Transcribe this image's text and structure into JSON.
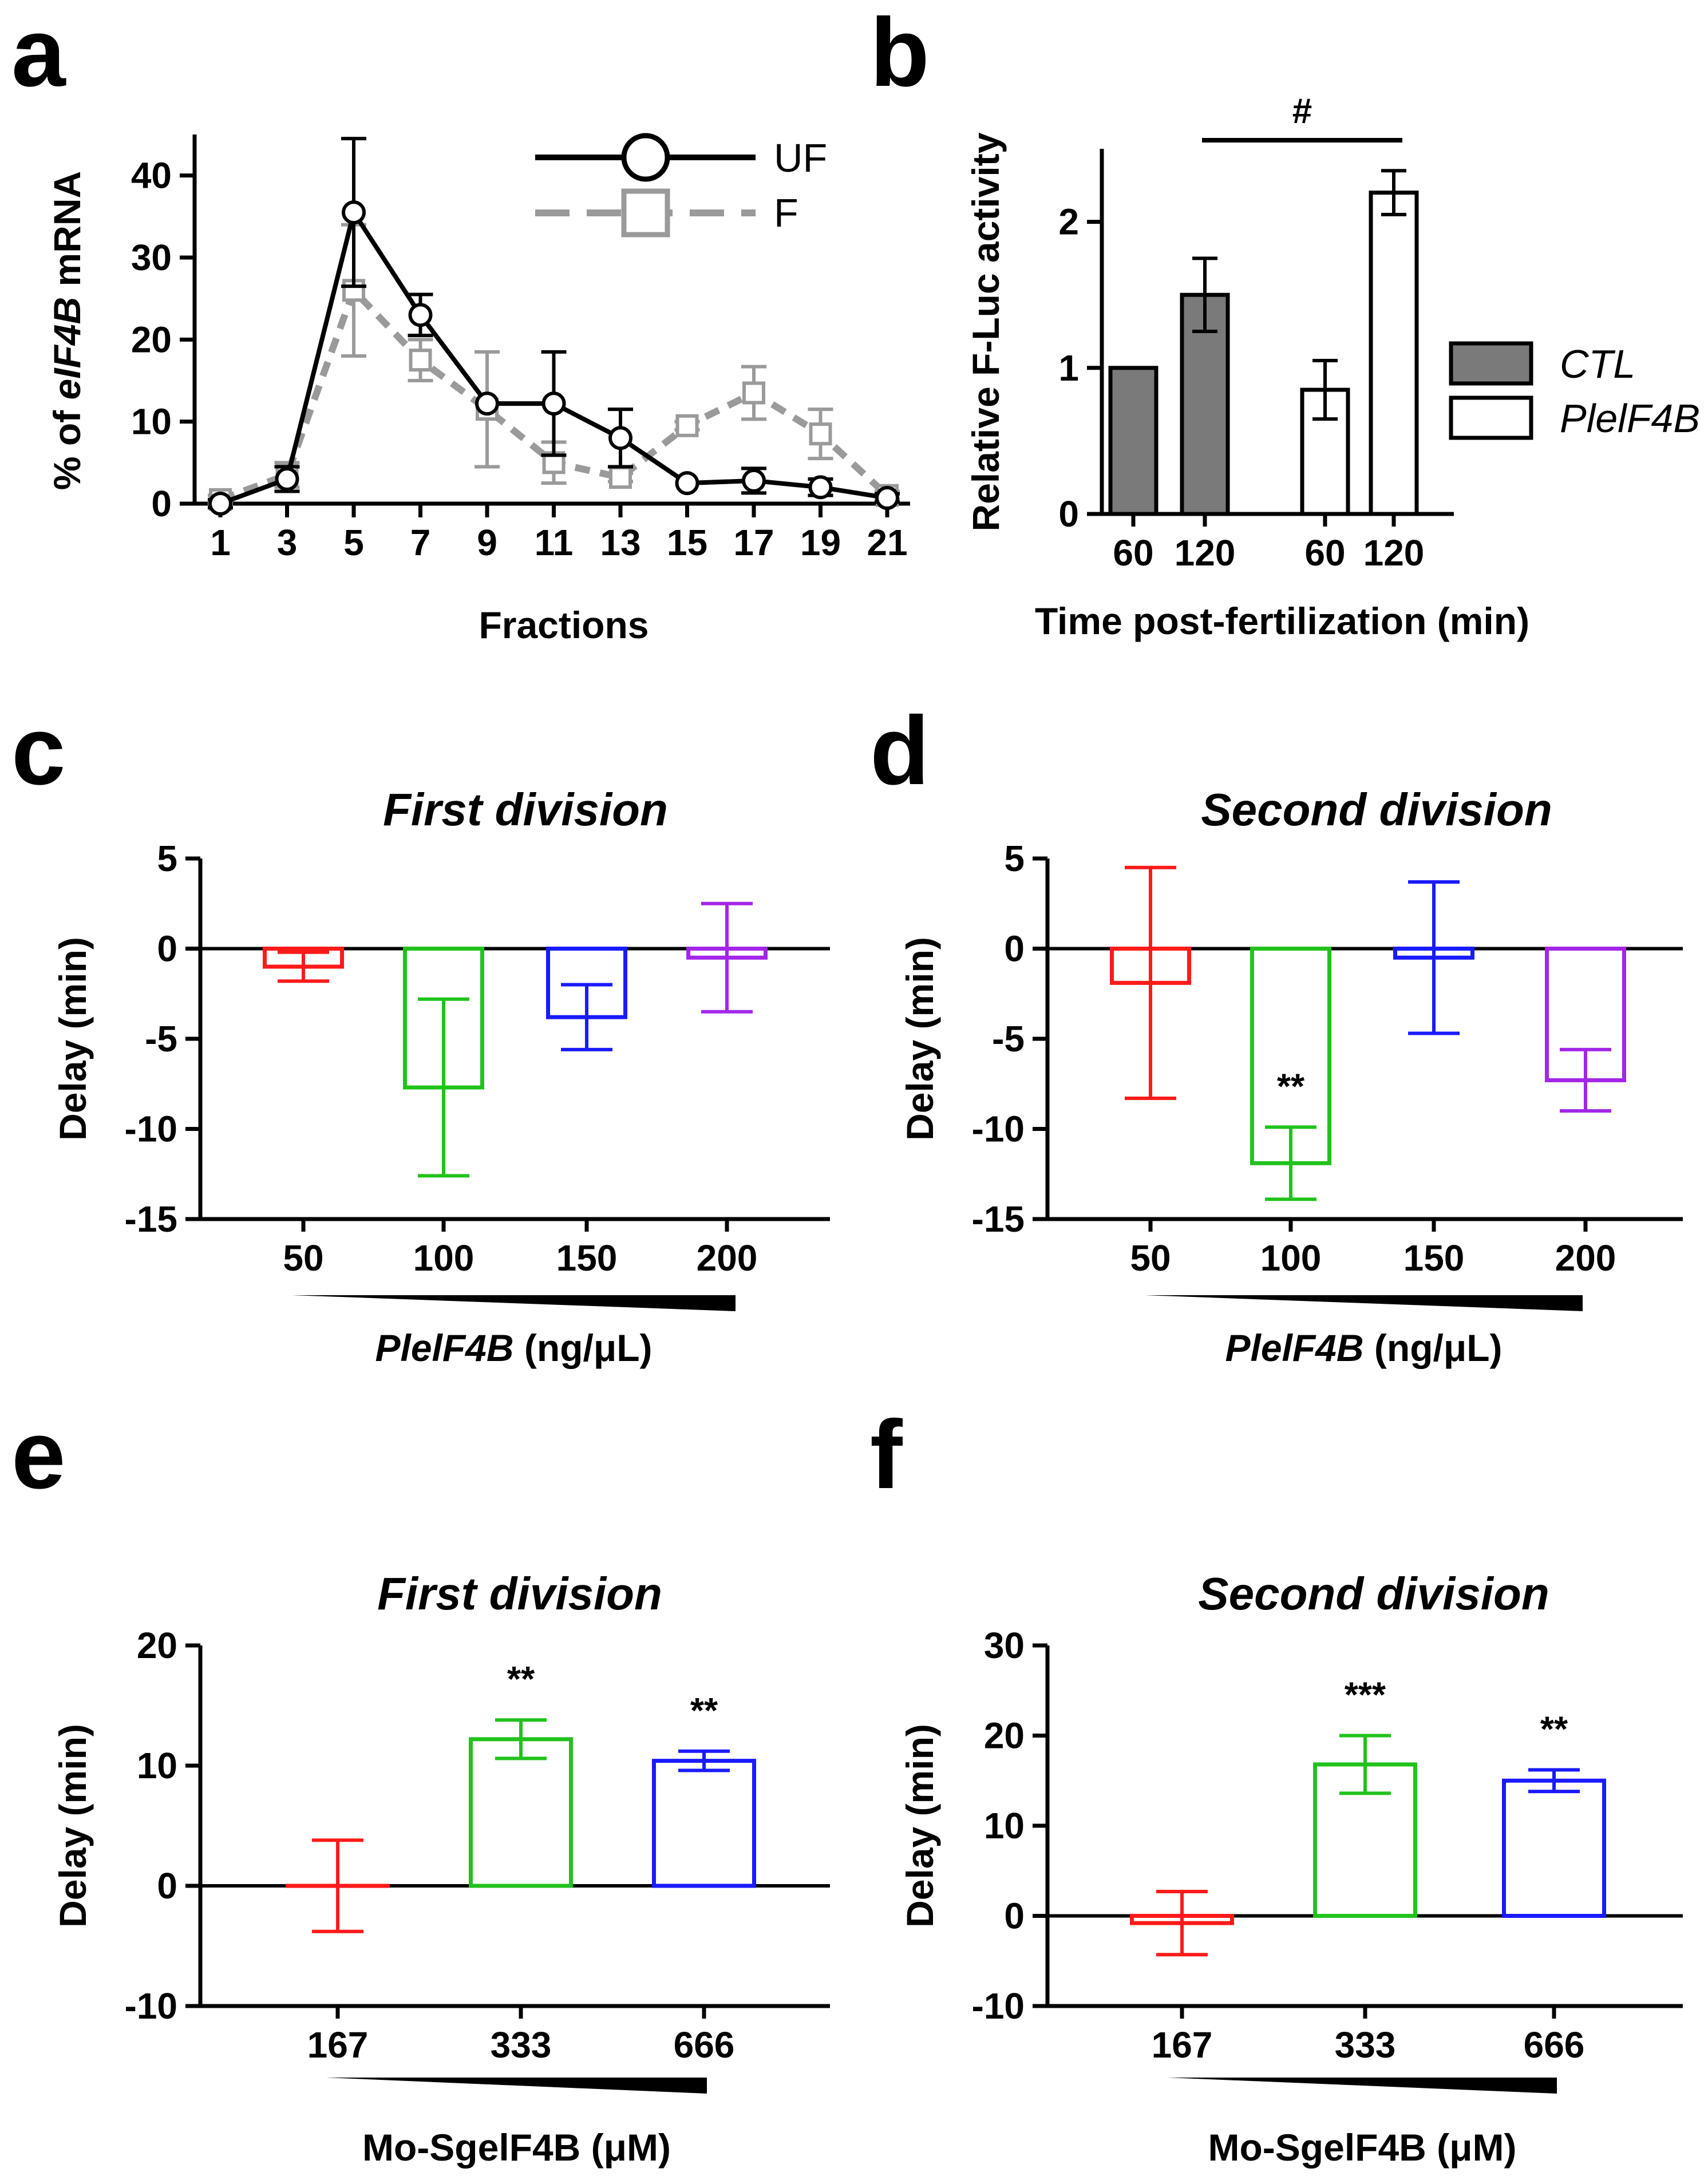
{
  "colors": {
    "black": "#000000",
    "gray": "#9a9a9a",
    "dark_gray": "#7a7a7a",
    "red": "#ff1a1a",
    "green": "#21c21c",
    "blue": "#1a1aff",
    "purple": "#a326e8"
  },
  "chart_data": [
    {
      "panel": "a",
      "type": "line",
      "title": "",
      "xlabel": "Fractions",
      "ylabel_prefix": "% of ",
      "ylabel_italic": "eIF4B",
      "ylabel_suffix": " mRNA",
      "x": [
        1,
        3,
        5,
        7,
        9,
        11,
        13,
        15,
        17,
        19,
        21
      ],
      "x_ticks": [
        "1",
        "3",
        "5",
        "7",
        "9",
        "11",
        "13",
        "15",
        "17",
        "19",
        "21"
      ],
      "y_ticks": [
        "0",
        "10",
        "20",
        "30",
        "40"
      ],
      "ylim": [
        0,
        45
      ],
      "legend_position": "top-right",
      "series": [
        {
          "name": "UF",
          "style": "solid",
          "marker": "circle",
          "values": [
            0,
            3,
            35.5,
            23,
            12.2,
            12.2,
            8,
            2.5,
            2.8,
            2,
            0.7
          ],
          "errors": [
            0.5,
            1.5,
            9,
            2.5,
            0,
            6.3,
            3.5,
            0,
            1.5,
            1,
            0.5
          ]
        },
        {
          "name": "F",
          "style": "dashed",
          "marker": "square",
          "values": [
            0.5,
            3.5,
            26,
            17.5,
            11.5,
            5,
            3.2,
            9.5,
            13.5,
            8.5,
            1
          ],
          "errors": [
            0.5,
            1.5,
            8,
            2.5,
            7,
            2.5,
            0.5,
            0.5,
            3.2,
            3,
            0.5
          ]
        }
      ]
    },
    {
      "panel": "b",
      "type": "bar",
      "title": "",
      "xlabel": "Time post-fertilization (min)",
      "ylabel": "Relative F-Luc activity",
      "categories": [
        "60",
        "120",
        "60",
        "120"
      ],
      "groups": [
        "CTL",
        "CTL",
        "PlelF4B",
        "PlelF4B"
      ],
      "values": [
        1.0,
        1.5,
        0.85,
        2.2
      ],
      "errors": [
        0,
        0.25,
        0.2,
        0.15
      ],
      "y_ticks": [
        "0",
        "1",
        "2"
      ],
      "ylim": [
        0,
        2.5
      ],
      "significance": "#",
      "legend": [
        "CTL",
        "PlelF4B"
      ],
      "legend_position": "right"
    },
    {
      "panel": "c",
      "type": "bar",
      "title": "First division",
      "ylabel": "Delay (min)",
      "xlabel_italic": "PlelF4B",
      "xlabel_suffix": "(ng/μL)",
      "categories": [
        "50",
        "100",
        "150",
        "200"
      ],
      "values": [
        -1,
        -7.7,
        -3.8,
        -0.5
      ],
      "errors": [
        0.8,
        4.9,
        1.8,
        3
      ],
      "colors": [
        "#ff1a1a",
        "#21c21c",
        "#1a1aff",
        "#a326e8"
      ],
      "significance": [
        "",
        "",
        "",
        ""
      ],
      "y_ticks": [
        "5",
        "0",
        "-5",
        "-10",
        "-15"
      ],
      "ylim": [
        -15,
        5
      ]
    },
    {
      "panel": "d",
      "type": "bar",
      "title": "Second division",
      "ylabel": "Delay (min)",
      "xlabel_italic": "PlelF4B",
      "xlabel_suffix": "(ng/μL)",
      "categories": [
        "50",
        "100",
        "150",
        "200"
      ],
      "values": [
        -1.9,
        -11.9,
        -0.5,
        -7.3
      ],
      "errors": [
        6.4,
        2,
        4.2,
        1.7
      ],
      "colors": [
        "#ff1a1a",
        "#21c21c",
        "#1a1aff",
        "#a326e8"
      ],
      "significance": [
        "",
        "**",
        "",
        ""
      ],
      "y_ticks": [
        "5",
        "0",
        "-5",
        "-10",
        "-15"
      ],
      "ylim": [
        -15,
        5
      ]
    },
    {
      "panel": "e",
      "type": "bar",
      "title": "First division",
      "ylabel": "Delay (min)",
      "xlabel": "Mo-SgelF4B (μM)",
      "categories": [
        "167",
        "333",
        "666"
      ],
      "values": [
        0,
        12.2,
        10.4
      ],
      "errors": [
        3.8,
        1.6,
        0.8
      ],
      "colors": [
        "#ff1a1a",
        "#21c21c",
        "#1a1aff"
      ],
      "significance": [
        "",
        "**",
        "**"
      ],
      "y_ticks": [
        "20",
        "10",
        "0",
        "-10"
      ],
      "ylim": [
        -10,
        20
      ]
    },
    {
      "panel": "f",
      "type": "bar",
      "title": "Second division",
      "ylabel": "Delay (min)",
      "xlabel": "Mo-SgelF4B (μM)",
      "categories": [
        "167",
        "333",
        "666"
      ],
      "values": [
        -0.8,
        16.8,
        15
      ],
      "errors": [
        3.5,
        3.2,
        1.2
      ],
      "colors": [
        "#ff1a1a",
        "#21c21c",
        "#1a1aff"
      ],
      "significance": [
        "",
        "***",
        "**"
      ],
      "y_ticks": [
        "30",
        "20",
        "10",
        "0",
        "-10"
      ],
      "ylim": [
        -10,
        30
      ]
    }
  ]
}
